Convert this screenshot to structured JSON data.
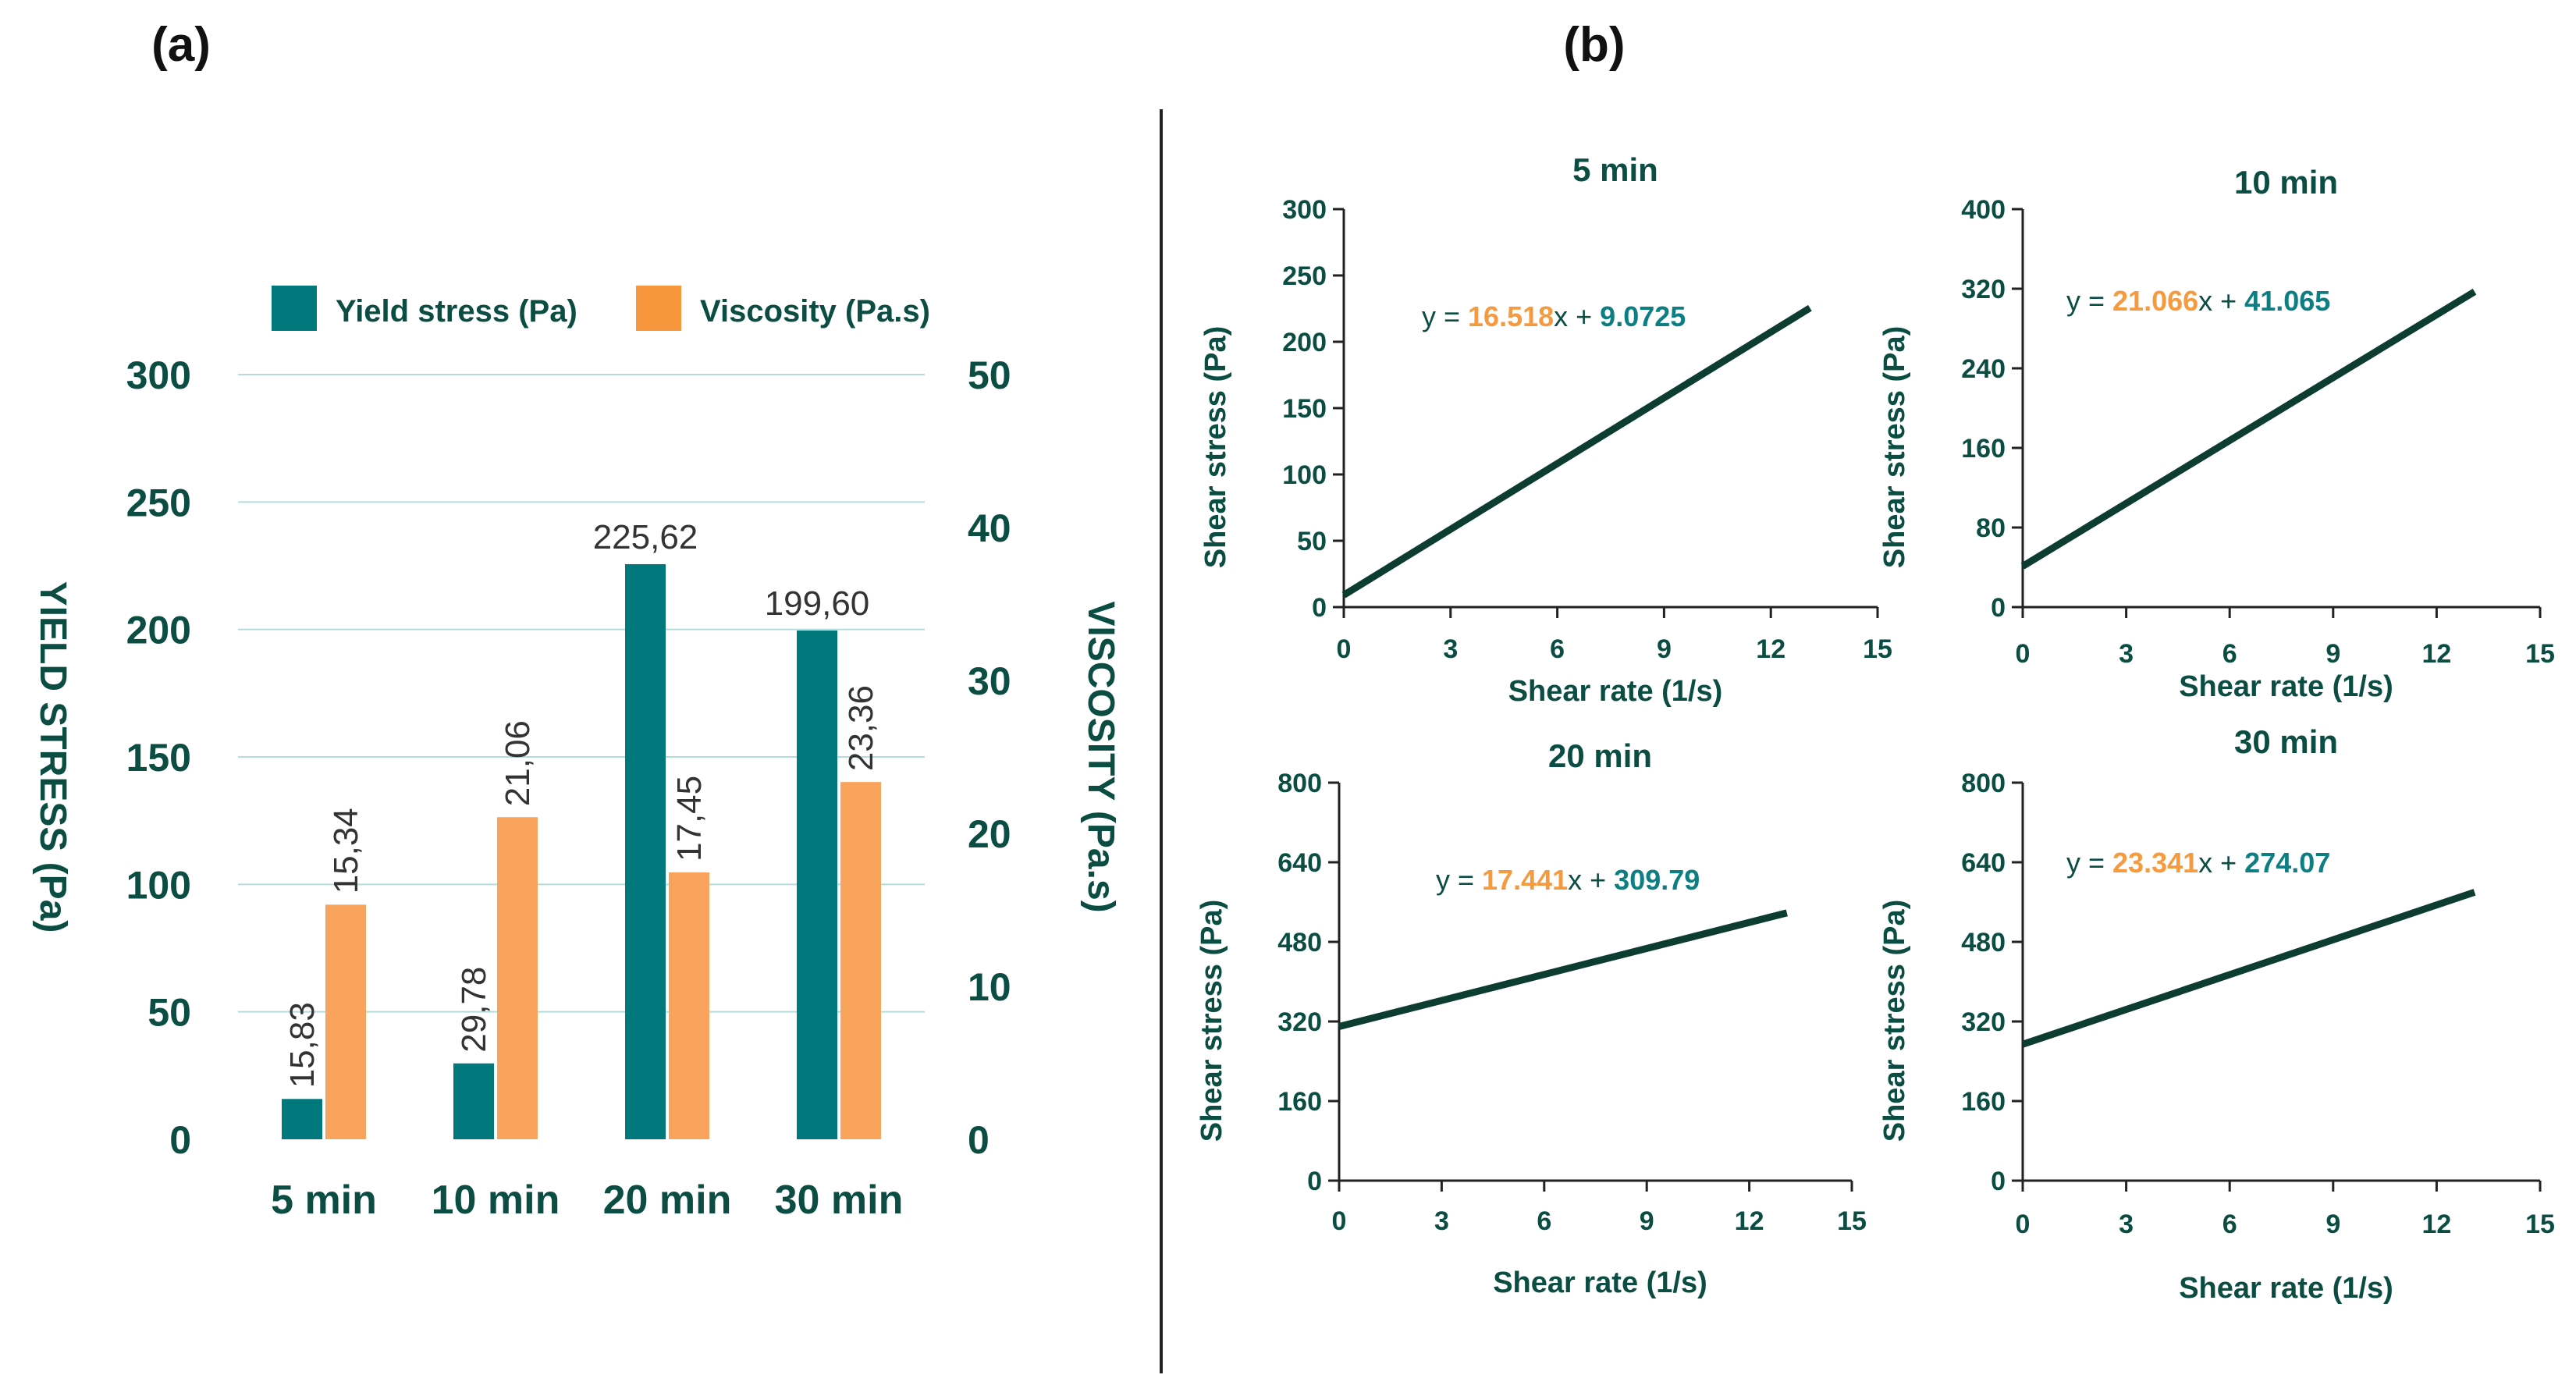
{
  "panels": {
    "a_label": "(a)",
    "b_label": "(b)"
  },
  "colors": {
    "yield": "#00787c",
    "viscosity": "#f9a45c",
    "legend_viscosity": "#f7963d",
    "text_dark": "#0b4d43",
    "line": "#0d3d30",
    "grid": "#b5dcdc",
    "slope": "#f59a3e",
    "intercept": "#0e7e82"
  },
  "chart_data": [
    {
      "type": "bar",
      "panel": "(a)",
      "categories": [
        "5 min",
        "10 min",
        "20 min",
        "30 min"
      ],
      "series": [
        {
          "name": "Yield stress (Pa)",
          "axis": "left",
          "values": [
            15.83,
            29.78,
            225.62,
            199.6
          ],
          "labels": [
            "15,83",
            "29,78",
            "225,62",
            "199,60"
          ]
        },
        {
          "name": "Viscosity (Pa.s)",
          "axis": "right",
          "values": [
            15.34,
            21.06,
            17.45,
            23.36
          ],
          "labels": [
            "15,34",
            "21,06",
            "17,45",
            "23,36"
          ]
        }
      ],
      "ylabel_left": "YIELD STRESS (Pa)",
      "ylabel_right": "VISCOSITY (Pa.s)",
      "ylim_left": [
        0,
        300
      ],
      "yticks_left": [
        "0",
        "50",
        "100",
        "150",
        "200",
        "250",
        "300"
      ],
      "ylim_right": [
        0,
        50
      ],
      "yticks_right": [
        "0",
        "10",
        "20",
        "30",
        "40",
        "50"
      ],
      "legend": [
        "Yield stress (Pa)",
        "Viscosity (Pa.s)"
      ],
      "legend_position": "top",
      "grid": true
    },
    {
      "type": "line",
      "panel": "(b)",
      "title": "5 min",
      "xlabel": "Shear rate (1/s)",
      "ylabel": "Shear stress (Pa)",
      "xlim": [
        0,
        15
      ],
      "xticks": [
        "0",
        "3",
        "6",
        "9",
        "12",
        "15"
      ],
      "ylim": [
        0,
        300
      ],
      "yticks": [
        "0",
        "50",
        "100",
        "150",
        "200",
        "250",
        "300"
      ],
      "slope": 16.518,
      "intercept": 9.0725,
      "x_range": [
        0,
        13.1
      ],
      "equation": {
        "prefix": "y = ",
        "slope": "16.518",
        "mid": "x + ",
        "intercept": "9.0725"
      }
    },
    {
      "type": "line",
      "panel": "(b)",
      "title": "10 min",
      "xlabel": "Shear rate (1/s)",
      "ylabel": "Shear stress (Pa)",
      "xlim": [
        0,
        15
      ],
      "xticks": [
        "0",
        "3",
        "6",
        "9",
        "12",
        "15"
      ],
      "ylim": [
        0,
        400
      ],
      "yticks": [
        "0",
        "80",
        "160",
        "240",
        "320",
        "400"
      ],
      "slope": 21.066,
      "intercept": 41.065,
      "x_range": [
        0,
        13.1
      ],
      "equation": {
        "prefix": "y = ",
        "slope": "21.066",
        "mid": "x + ",
        "intercept": "41.065"
      }
    },
    {
      "type": "line",
      "panel": "(b)",
      "title": "20 min",
      "xlabel": "Shear rate (1/s)",
      "ylabel": "Shear stress (Pa)",
      "xlim": [
        0,
        15
      ],
      "xticks": [
        "0",
        "3",
        "6",
        "9",
        "12",
        "15"
      ],
      "ylim": [
        0,
        800
      ],
      "yticks": [
        "0",
        "160",
        "320",
        "480",
        "640",
        "800"
      ],
      "slope": 17.441,
      "intercept": 309.79,
      "x_range": [
        0,
        13.1
      ],
      "equation": {
        "prefix": "y = ",
        "slope": "17.441",
        "mid": "x + ",
        "intercept": "309.79"
      }
    },
    {
      "type": "line",
      "panel": "(b)",
      "title": "30 min",
      "xlabel": "Shear rate (1/s)",
      "ylabel": "Shear stress (Pa)",
      "xlim": [
        0,
        15
      ],
      "xticks": [
        "0",
        "3",
        "6",
        "9",
        "12",
        "15"
      ],
      "ylim": [
        0,
        800
      ],
      "yticks": [
        "0",
        "160",
        "320",
        "480",
        "640",
        "800"
      ],
      "slope": 23.341,
      "intercept": 274.07,
      "x_range": [
        0,
        13.1
      ],
      "equation": {
        "prefix": "y = ",
        "slope": "23.341",
        "mid": "x + ",
        "intercept": "274.07"
      }
    }
  ]
}
